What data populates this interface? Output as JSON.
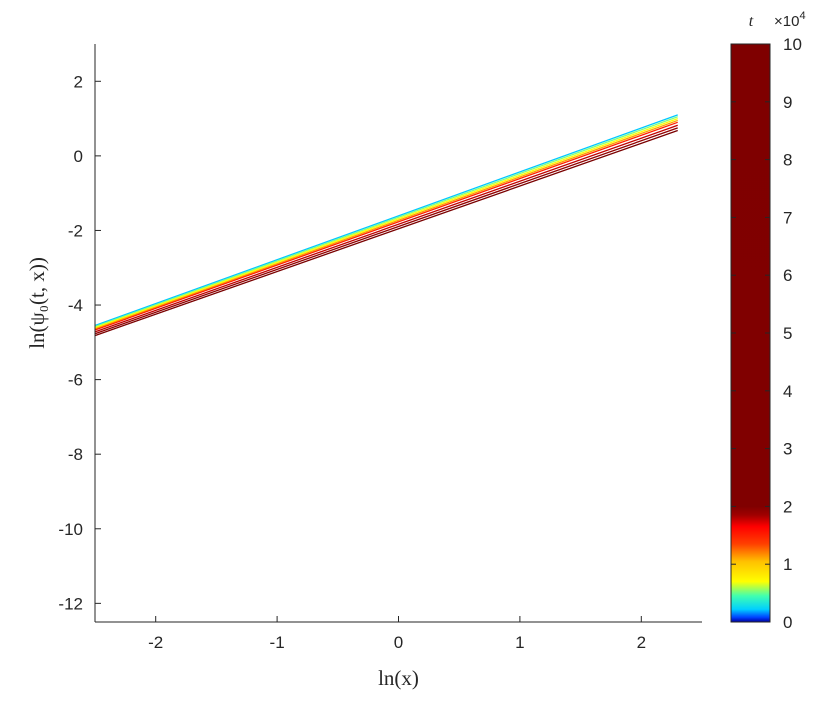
{
  "chart_data": {
    "type": "line",
    "xlabel": "ln(x)",
    "ylabel": "ln(ψ₀(t, x))",
    "xlim": [
      -2.5,
      2.5
    ],
    "ylim": [
      -12.5,
      3
    ],
    "xticks": [
      "-2",
      "-1",
      "0",
      "1",
      "2"
    ],
    "yticks": [
      "2",
      "0",
      "-2",
      "-4",
      "-6",
      "-8",
      "-10",
      "-12"
    ],
    "grid": false,
    "series": [
      {
        "x": [
          -2.5,
          2.3
        ],
        "y": [
          -4.55,
          1.1
        ],
        "color": "#00c8ff"
      },
      {
        "x": [
          -2.5,
          2.3
        ],
        "y": [
          -4.58,
          1.05
        ],
        "color": "#80ff80"
      },
      {
        "x": [
          -2.5,
          2.3
        ],
        "y": [
          -4.61,
          1.0
        ],
        "color": "#ffff00"
      },
      {
        "x": [
          -2.5,
          2.3
        ],
        "y": [
          -4.64,
          0.95
        ],
        "color": "#ffa000"
      },
      {
        "x": [
          -2.5,
          2.3
        ],
        "y": [
          -4.67,
          0.9
        ],
        "color": "#ff2000"
      },
      {
        "x": [
          -2.5,
          2.3
        ],
        "y": [
          -4.72,
          0.82
        ],
        "color": "#c00000"
      },
      {
        "x": [
          -2.5,
          2.3
        ],
        "y": [
          -4.77,
          0.75
        ],
        "color": "#900000"
      },
      {
        "x": [
          -2.5,
          2.3
        ],
        "y": [
          -4.82,
          0.68
        ],
        "color": "#7a0000"
      }
    ],
    "colorbar": {
      "title": "t",
      "exponent_label": "×10",
      "exponent_power": "4",
      "range": [
        0,
        10
      ],
      "ticks": [
        "0",
        "1",
        "2",
        "3",
        "4",
        "5",
        "6",
        "7",
        "8",
        "9",
        "10"
      ],
      "stops": [
        {
          "value": 0.0,
          "color": "#0000a0"
        },
        {
          "value": 0.08,
          "color": "#0040ff"
        },
        {
          "value": 0.22,
          "color": "#00d0ff"
        },
        {
          "value": 0.45,
          "color": "#40ffb0"
        },
        {
          "value": 0.7,
          "color": "#ffff00"
        },
        {
          "value": 1.05,
          "color": "#ffc000"
        },
        {
          "value": 1.35,
          "color": "#ff4000"
        },
        {
          "value": 1.65,
          "color": "#ff0000"
        },
        {
          "value": 1.85,
          "color": "#a00000"
        },
        {
          "value": 2.0,
          "color": "#800000"
        },
        {
          "value": 10.0,
          "color": "#7f0000"
        }
      ]
    }
  }
}
